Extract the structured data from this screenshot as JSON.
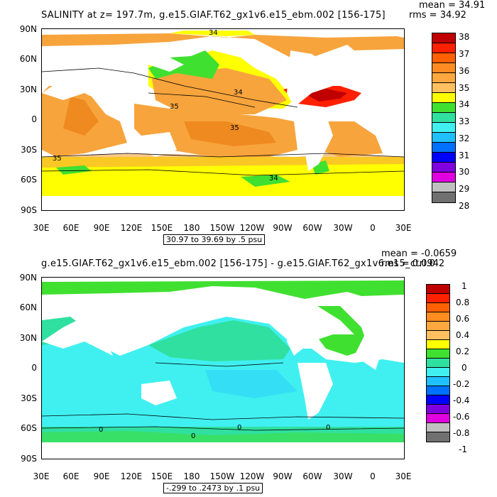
{
  "top": {
    "title": "SALINITY at z= 197.7m, g.e15.GIAF.T62_gx1v6.e15_ebm.002 [156-175]",
    "mean": "mean = 34.91",
    "rms": "rms = 34.92",
    "range": "30.97 to 39.69 by .5 psu",
    "colorbar": {
      "labels": [
        "38",
        "37",
        "36",
        "35",
        "34",
        "33",
        "32",
        "31",
        "30",
        "29",
        "28"
      ],
      "colors": [
        "#c00000",
        "#ff2000",
        "#ff6000",
        "#ff9a30",
        "#f0b050",
        "#ffff00",
        "#40e030",
        "#30e0a0",
        "#40f0f0",
        "#20c0ff",
        "#0070ff",
        "#0000ff",
        "#8000e0",
        "#e000e0",
        "#c0c0c0",
        "#707070"
      ]
    },
    "contour_labels": [
      "34",
      "34",
      "35",
      "35",
      "35",
      "34"
    ]
  },
  "bottom": {
    "title": "g.e15.GIAF.T62_gx1v6.e15_ebm.002 [156-175] - g.e15.GIAF.T62_gx1v6.e15_ctrl.0",
    "mean": "mean = -0.0659",
    "rms": "rms = 0.0942",
    "range": "-.299 to .2473 by .1 psu",
    "colorbar": {
      "labels": [
        "1",
        "0.8",
        "0.6",
        "0.4",
        "0.2",
        "0",
        "-0.2",
        "-0.4",
        "-0.6",
        "-0.8",
        "-1"
      ],
      "colors": [
        "#c00000",
        "#ff2000",
        "#ff6000",
        "#ff9a30",
        "#ffc060",
        "#ffff00",
        "#40e030",
        "#30e0a0",
        "#40f0f0",
        "#20c0ff",
        "#0070ff",
        "#0000ff",
        "#8000e0",
        "#e000e0",
        "#c0c0c0",
        "#707070"
      ]
    },
    "contour_labels": [
      "0",
      "0",
      "0",
      "0"
    ]
  },
  "axes": {
    "lat_labels": [
      "90N",
      "60N",
      "30N",
      "0",
      "30S",
      "60S",
      "90S"
    ],
    "lon_labels": [
      "30E",
      "60E",
      "90E",
      "120E",
      "150E",
      "180",
      "150W",
      "120W",
      "90W",
      "60W",
      "30W",
      "0",
      "30E"
    ]
  }
}
